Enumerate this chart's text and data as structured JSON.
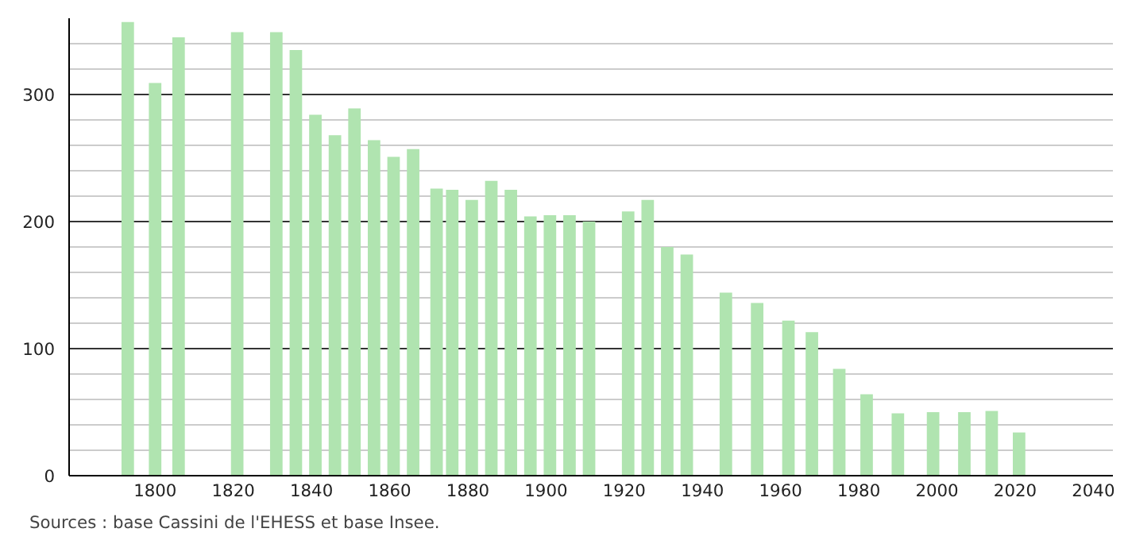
{
  "chart_data": {
    "type": "bar",
    "x": [
      1793,
      1800,
      1806,
      1821,
      1831,
      1836,
      1841,
      1846,
      1851,
      1856,
      1861,
      1866,
      1872,
      1876,
      1881,
      1886,
      1891,
      1896,
      1901,
      1906,
      1911,
      1921,
      1926,
      1931,
      1936,
      1946,
      1954,
      1962,
      1968,
      1975,
      1982,
      1990,
      1999,
      2007,
      2014,
      2021
    ],
    "values": [
      357,
      309,
      345,
      349,
      349,
      335,
      284,
      268,
      289,
      264,
      251,
      257,
      226,
      225,
      217,
      232,
      225,
      204,
      205,
      205,
      200,
      208,
      217,
      180,
      174,
      144,
      136,
      122,
      113,
      84,
      64,
      49,
      50,
      50,
      51,
      34
    ],
    "color": "#b0e4b0",
    "xlim": [
      1778,
      2045
    ],
    "ylim": [
      0,
      360
    ],
    "xticks": [
      1800,
      1820,
      1840,
      1860,
      1880,
      1900,
      1920,
      1940,
      1960,
      1980,
      2000,
      2020,
      2040
    ],
    "yticks": [
      0,
      100,
      200,
      300
    ],
    "grid": "y",
    "annotations": [
      "Sources : base Cassini de l'EHESS et base Insee."
    ]
  }
}
